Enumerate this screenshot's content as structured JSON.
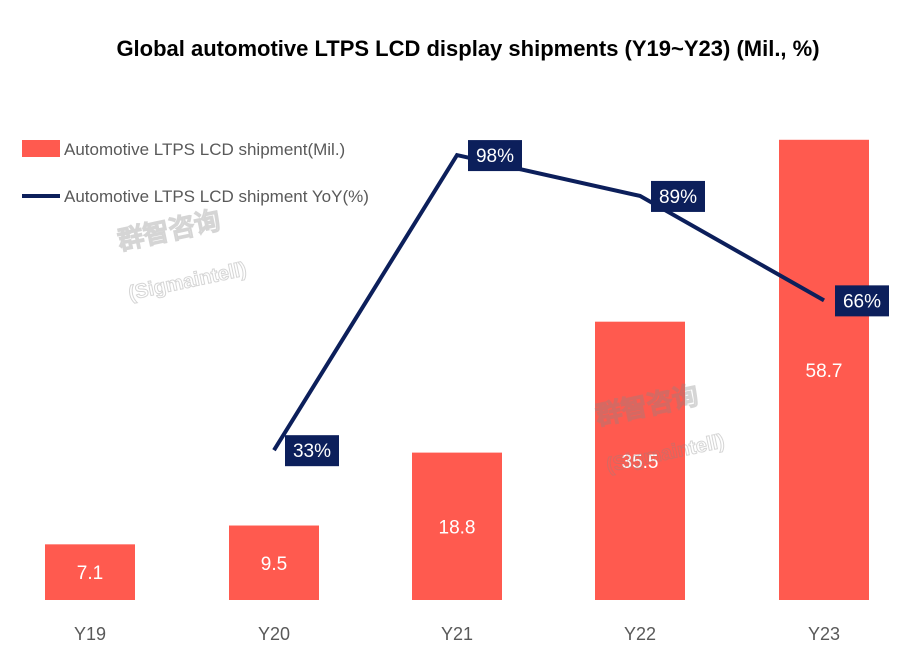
{
  "chart_data": {
    "type": "bar+line",
    "title": "Global automotive LTPS LCD display shipments (Y19~Y23) (Mil., %)",
    "categories": [
      "Y19",
      "Y20",
      "Y21",
      "Y22",
      "Y23"
    ],
    "series": [
      {
        "name": "Automotive LTPS LCD shipment(Mil.)",
        "type": "bar",
        "values": [
          7.1,
          9.5,
          18.8,
          35.5,
          58.7
        ],
        "labels": [
          "7.1",
          "9.5",
          "18.8",
          "35.5",
          "58.7"
        ],
        "color": "#ff5a4f"
      },
      {
        "name": "Automotive LTPS LCD shipment YoY(%)",
        "type": "line",
        "values": [
          null,
          33,
          98,
          89,
          66
        ],
        "labels": [
          "",
          "33%",
          "98%",
          "89%",
          "66%"
        ],
        "color": "#0c1f5b"
      }
    ],
    "legend": "top-left",
    "grid": false,
    "watermark": "群智咨询 (Sigmaintell)"
  }
}
